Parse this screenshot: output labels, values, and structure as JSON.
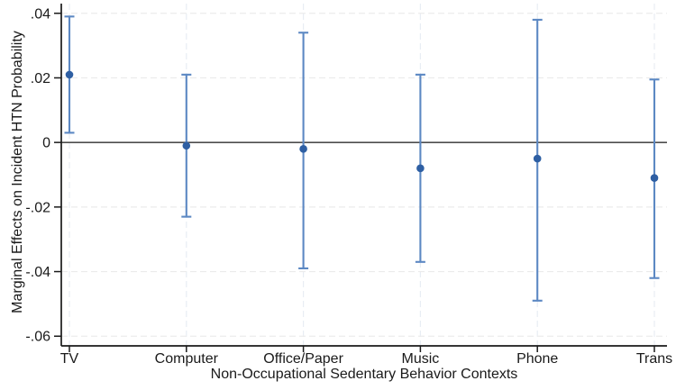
{
  "figure": {
    "background": "#ffffff"
  },
  "chart_data": {
    "type": "scatter",
    "subtype": "coefficient-plot-with-95ci-error-bars",
    "title": "",
    "xlabel": "Non-Occupational Sedentary Behavior Contexts",
    "ylabel": "Marginal Effects on Incident HTN Probability",
    "categories": [
      "TV",
      "Computer",
      "Office/Paper",
      "Music",
      "Phone",
      "Trans"
    ],
    "estimates": [
      0.021,
      -0.001,
      -0.002,
      -0.008,
      -0.005,
      -0.011
    ],
    "ci_low": [
      0.003,
      -0.023,
      -0.039,
      -0.037,
      -0.049,
      -0.042
    ],
    "ci_high": [
      0.039,
      0.021,
      0.034,
      0.021,
      0.038,
      0.0195
    ],
    "yticks": [
      0.04,
      0.02,
      0,
      -0.02,
      -0.04,
      -0.06
    ],
    "ytick_labels": [
      ".04",
      ".02",
      "0",
      "-.02",
      "-.04",
      "-.06"
    ],
    "ylim": [
      -0.063,
      0.043
    ],
    "zero_line": 0,
    "grid": true,
    "legend_position": "none",
    "colors": {
      "marker": "#2e5fa3",
      "error_bar": "#5c88c3",
      "zero_line": "#4d4d4d",
      "axis": "#1a1a1a",
      "grid_horizontal": "#ebebeb",
      "grid_vertical": "#e8edf4",
      "text": "#1a1a1a"
    }
  }
}
